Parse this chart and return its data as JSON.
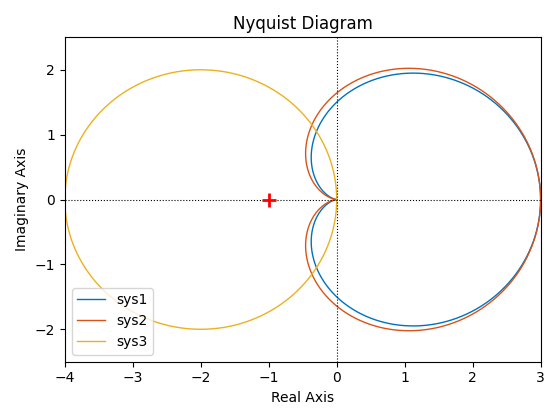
{
  "title": "Nyquist Diagram",
  "xlabel": "Real Axis",
  "ylabel": "Imaginary Axis",
  "xlim": [
    -4,
    3
  ],
  "ylim": [
    -2.5,
    2.5
  ],
  "sys1_color": "#0072BD",
  "sys2_color": "#D95319",
  "sys3_color": "#EDB120",
  "marker_color_red": "#FF0000",
  "legend_labels": [
    "sys1",
    "sys2",
    "sys3"
  ]
}
